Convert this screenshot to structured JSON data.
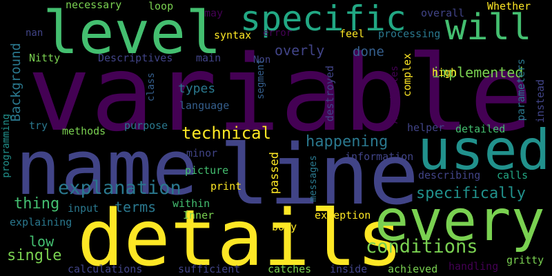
{
  "palette": {
    "background": "#000000",
    "dark_purple": "#440154",
    "indigo": "#414487",
    "blue": "#355f8d",
    "teal": "#2a788e",
    "teal_green": "#21918c",
    "green": "#22a884",
    "light_green": "#44bf70",
    "lime": "#7ad151",
    "yellow": "#fde725"
  },
  "words": [
    "variable",
    "name",
    "line",
    "details",
    "every",
    "level",
    "specific",
    "used",
    "will",
    "conditions",
    "explanation",
    "technical",
    "implemented",
    "happening",
    "overly",
    "specifically",
    "thing",
    "done",
    "terms",
    "necessary",
    "loop",
    "may",
    "overall",
    "Whether",
    "nan",
    "syntax",
    "error",
    "feel",
    "processing",
    "Nitty",
    "Descriptives",
    "main",
    "Non",
    "Background",
    "class",
    "types",
    "language",
    "segment",
    "destroyed",
    "complex",
    "Attributes",
    "high",
    "parameters",
    "instead",
    "try",
    "methods",
    "purpose",
    "helper",
    "detailed",
    "minor",
    "information",
    "picture",
    "describing",
    "calls",
    "programming",
    "print",
    "passed",
    "messages",
    "input",
    "within",
    "explaining",
    "Inner",
    "exception",
    "low",
    "body",
    "single",
    "gritty",
    "calculations",
    "sufficient",
    "catches",
    "inside",
    "achieved",
    "handling"
  ]
}
